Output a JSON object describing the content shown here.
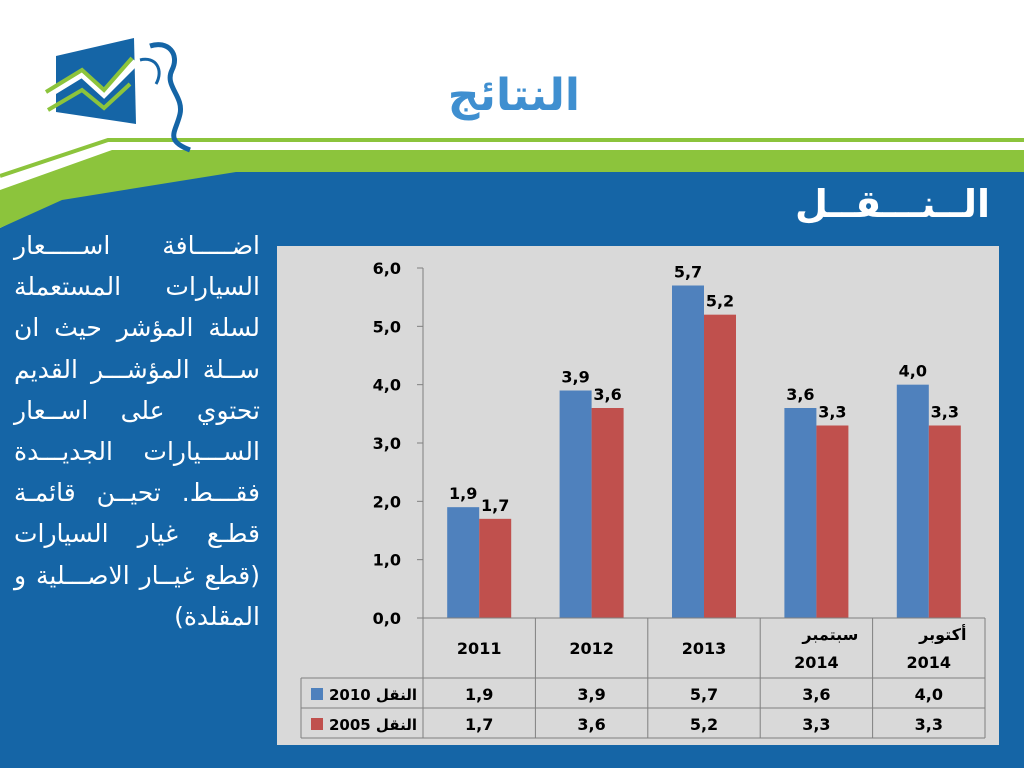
{
  "slide": {
    "title": "النتائج",
    "subtitle": "الــنـــقــل",
    "body_text": "اضـــــافة اســـــعار السيارات المستعملة لسلة المؤشر حيث ان ســلة المؤشـــر القديم تحتوي على اســعار الســـيارات الجديـــدة فقـــط. تحيــن قائمـة قطـع غيار السيارات (قطع غيــار الاصـــلية و المقلدة)"
  },
  "colors": {
    "background_blue": "#1565a6",
    "accent_green": "#8cc43c",
    "title_blue": "#3f8fd0",
    "chart_bg": "#d9d9d9",
    "series_2010": "#4f81bd",
    "series_2005": "#c0504d",
    "logo_blue": "#1565a6",
    "logo_green": "#8cc43c"
  },
  "chart_data": {
    "type": "bar",
    "categories": [
      "2011",
      "2012",
      "2013",
      "سبتمبر 2014",
      "أكتوبر 2014"
    ],
    "category_lines": [
      [
        "2011"
      ],
      [
        "2012"
      ],
      [
        "2013"
      ],
      [
        "سبتمبر",
        "2014"
      ],
      [
        "أكتوبر",
        "2014"
      ]
    ],
    "series": [
      {
        "name": "النقل 2010",
        "name_word": "النقل",
        "name_year": "2010",
        "values": [
          1.9,
          3.9,
          5.7,
          3.6,
          4.0
        ],
        "labels": [
          "1,9",
          "3,9",
          "5,7",
          "3,6",
          "4,0"
        ]
      },
      {
        "name": "النقل 2005",
        "name_word": "النقل",
        "name_year": "2005",
        "values": [
          1.7,
          3.6,
          5.2,
          3.3,
          3.3
        ],
        "labels": [
          "1,7",
          "3,6",
          "5,2",
          "3,3",
          "3,3"
        ]
      }
    ],
    "ylim": [
      0,
      6
    ],
    "yticks": [
      0,
      1,
      2,
      3,
      4,
      5,
      6
    ],
    "ytick_labels": [
      "0,0",
      "1,0",
      "2,0",
      "3,0",
      "4,0",
      "5,0",
      "6,0"
    ],
    "grid": false,
    "legend": "data-table",
    "xlabel": "",
    "ylabel": ""
  }
}
